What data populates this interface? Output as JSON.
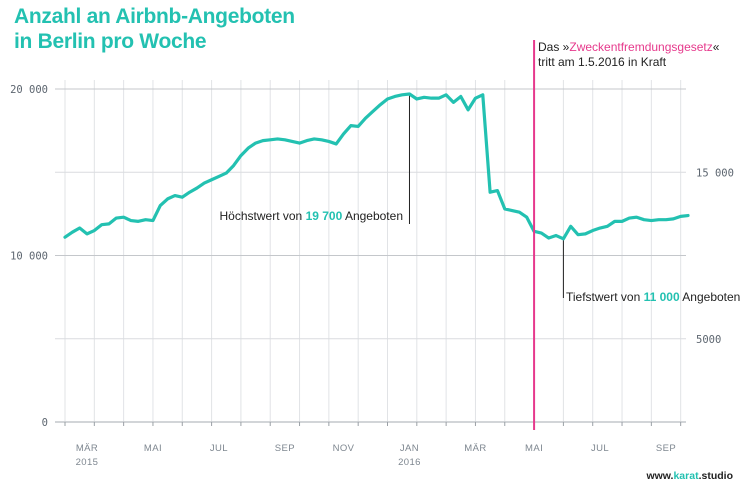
{
  "header": {
    "title_line1": "Anzahl an Airbnb-Angeboten",
    "title_line2": "in Berlin pro Woche"
  },
  "annotations": {
    "law_prefix": "Das »",
    "law_name": "Zweckentfremdungsgesetz",
    "law_suffix": "«",
    "law_line2": "tritt am 1.5.2016 in Kraft",
    "max_prefix": "Höchstwert von ",
    "max_value": "19 700",
    "max_suffix": " Angeboten",
    "min_prefix": "Tiefstwert von ",
    "min_value": "11 000",
    "min_suffix": " Angeboten"
  },
  "footer": {
    "credit_prefix": "www.",
    "credit_accent": "karat",
    "credit_suffix": ".studio"
  },
  "colors": {
    "line": "#23c1b1",
    "marker": "#e6398c",
    "grid": "#d5d7da",
    "text": "#222222"
  },
  "chart_data": {
    "type": "line",
    "title": "Anzahl an Airbnb-Angeboten in Berlin pro Woche",
    "xlabel": "",
    "ylabel": "",
    "ylim": [
      0,
      20000
    ],
    "left_ticks": [
      {
        "value": 0,
        "label": "0"
      },
      {
        "value": 10000,
        "label": "10 000"
      },
      {
        "value": 20000,
        "label": "20 000"
      }
    ],
    "right_ticks": [
      {
        "value": 5000,
        "label": "5000"
      },
      {
        "value": 15000,
        "label": "15 000"
      }
    ],
    "x_ticks": [
      {
        "week": 3,
        "label": "MÄR",
        "sub": "2015"
      },
      {
        "week": 12,
        "label": "MAI",
        "sub": ""
      },
      {
        "week": 21,
        "label": "JUL",
        "sub": ""
      },
      {
        "week": 30,
        "label": "SEP",
        "sub": ""
      },
      {
        "week": 38,
        "label": "NOV",
        "sub": ""
      },
      {
        "week": 47,
        "label": "JAN",
        "sub": "2016"
      },
      {
        "week": 56,
        "label": "MÄR",
        "sub": ""
      },
      {
        "week": 64,
        "label": "MAI",
        "sub": ""
      },
      {
        "week": 73,
        "label": "JUL",
        "sub": ""
      },
      {
        "week": 82,
        "label": "SEP",
        "sub": ""
      }
    ],
    "marker_week": 64,
    "max_point": {
      "week": 47,
      "value": 19700
    },
    "min_point": {
      "week": 68,
      "value": 11000
    },
    "series": [
      {
        "name": "Airbnb-Angebote",
        "values": [
          11100,
          11400,
          11650,
          11300,
          11500,
          11850,
          11900,
          12250,
          12300,
          12100,
          12050,
          12150,
          12100,
          13000,
          13400,
          13600,
          13500,
          13800,
          14050,
          14350,
          14550,
          14750,
          14950,
          15400,
          16000,
          16450,
          16750,
          16900,
          16950,
          17000,
          16950,
          16850,
          16750,
          16900,
          17000,
          16950,
          16850,
          16700,
          17300,
          17800,
          17750,
          18250,
          18650,
          19050,
          19400,
          19550,
          19650,
          19700,
          19400,
          19500,
          19450,
          19450,
          19650,
          19200,
          19550,
          18750,
          19450,
          19650,
          13800,
          13900,
          12800,
          12700,
          12600,
          12300,
          11450,
          11350,
          11050,
          11200,
          11000,
          11750,
          11250,
          11300,
          11500,
          11650,
          11750,
          12050,
          12050,
          12250,
          12300,
          12150,
          12100,
          12150,
          12150,
          12200,
          12350,
          12400
        ]
      }
    ]
  }
}
